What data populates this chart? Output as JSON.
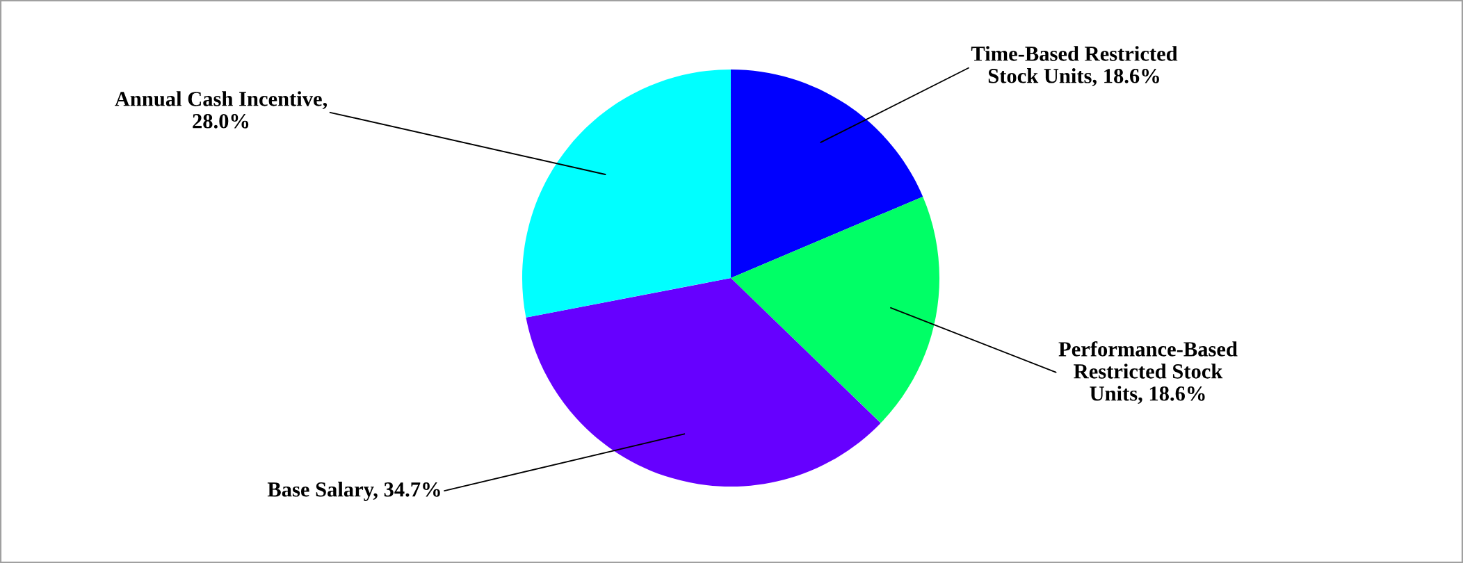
{
  "chart_data": {
    "type": "pie",
    "categories": [
      "Time-Based Restricted Stock Units, 18.6%",
      "Performance-Based Restricted Stock Units, 18.6%",
      "Base Salary, 34.7%",
      "Annual Cash Incentive, 28.0%"
    ],
    "values": [
      18.6,
      18.6,
      34.7,
      28.0
    ],
    "colors": [
      "#0000ff",
      "#00ff66",
      "#6600ff",
      "#00ffff"
    ]
  }
}
